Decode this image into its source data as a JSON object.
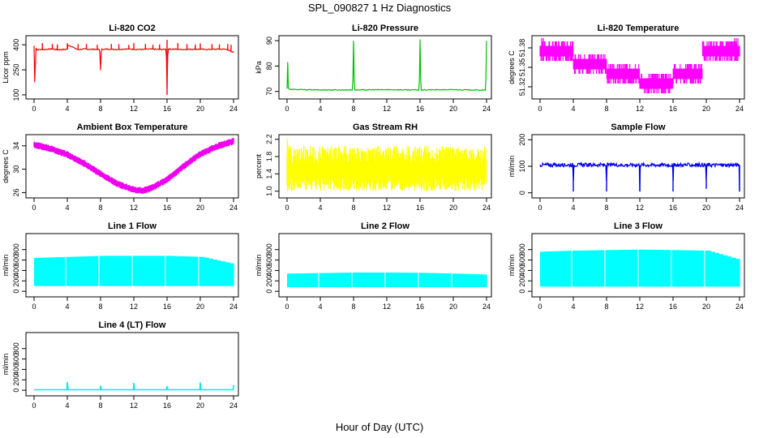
{
  "figure": {
    "title": "SPL_090827  1 Hz Diagnostics",
    "xlabel": "Hour of Day (UTC)"
  },
  "chart_data": [
    {
      "type": "line",
      "title": "Li-820 CO2",
      "ylabel": "Licor ppm",
      "color": "#ff0000",
      "xlim": [
        0,
        24
      ],
      "ylim": [
        90,
        440
      ],
      "xticks": [
        0,
        4,
        8,
        12,
        16,
        20,
        24
      ],
      "yticks": [
        100,
        250,
        400
      ],
      "xticklabels": [
        "0",
        "4",
        "8",
        "12",
        "16",
        "20",
        "24"
      ],
      "yticklabels": [
        "100",
        "250",
        "400"
      ],
      "series": [
        {
          "x": [
            0,
            0.1,
            0.2,
            0.3,
            1.1,
            2.2,
            2.8,
            4,
            4.1,
            5.2,
            6.1,
            7.9,
            8,
            8.1,
            9.2,
            10.1,
            11,
            12,
            13.2,
            14,
            15.1,
            15.9,
            16,
            16.1,
            17.2,
            18,
            19.1,
            20.1,
            21.2,
            22,
            23.2,
            23.8,
            24
          ],
          "y": [
            395,
            120,
            390,
            370,
            372,
            375,
            370,
            373,
            400,
            372,
            374,
            372,
            250,
            373,
            374,
            372,
            375,
            373,
            372,
            374,
            372,
            373,
            140,
            375,
            373,
            372,
            374,
            373,
            372,
            374,
            373,
            355,
            360
          ]
        }
      ],
      "spikes": [
        {
          "x": 0.1,
          "y": 120
        },
        {
          "x": 1.0,
          "y": 410
        },
        {
          "x": 2.2,
          "y": 405
        },
        {
          "x": 2.8,
          "y": 402
        },
        {
          "x": 4.0,
          "y": 410
        },
        {
          "x": 5.3,
          "y": 404
        },
        {
          "x": 6.3,
          "y": 405
        },
        {
          "x": 7.6,
          "y": 400
        },
        {
          "x": 8.0,
          "y": 250
        },
        {
          "x": 9.3,
          "y": 405
        },
        {
          "x": 10.2,
          "y": 404
        },
        {
          "x": 11.4,
          "y": 400
        },
        {
          "x": 12.0,
          "y": 410
        },
        {
          "x": 13.4,
          "y": 405
        },
        {
          "x": 14.3,
          "y": 400
        },
        {
          "x": 15.1,
          "y": 402
        },
        {
          "x": 16.0,
          "y": 430
        },
        {
          "x": 16.0,
          "y": 100
        },
        {
          "x": 17.3,
          "y": 410
        },
        {
          "x": 18.4,
          "y": 404
        },
        {
          "x": 19.4,
          "y": 402
        },
        {
          "x": 20.0,
          "y": 408
        },
        {
          "x": 21.4,
          "y": 404
        },
        {
          "x": 22.3,
          "y": 402
        },
        {
          "x": 23.3,
          "y": 405
        },
        {
          "x": 23.7,
          "y": 400
        }
      ]
    },
    {
      "type": "line",
      "title": "Li-820 Pressure",
      "ylabel": "kPa",
      "color": "#00c000",
      "xlim": [
        0,
        24
      ],
      "ylim": [
        68,
        91
      ],
      "xticks": [
        0,
        4,
        8,
        12,
        16,
        20,
        24
      ],
      "yticks": [
        70,
        80,
        90
      ],
      "xticklabels": [
        "0",
        "4",
        "8",
        "12",
        "16",
        "20",
        "24"
      ],
      "yticklabels": [
        "70",
        "80",
        "90"
      ],
      "series": [
        {
          "x": [
            0,
            0.05,
            0.15,
            0.3,
            4,
            7.9,
            8,
            8.1,
            12,
            15.9,
            16,
            16.1,
            20,
            23.9,
            24
          ],
          "y": [
            71,
            86,
            71.5,
            70.8,
            70.6,
            70.6,
            90,
            70.6,
            70.7,
            70.6,
            90.5,
            70.6,
            70.7,
            70.5,
            90
          ]
        }
      ],
      "spikes": [
        {
          "x": 0.05,
          "y": 86
        },
        {
          "x": 8.0,
          "y": 90
        },
        {
          "x": 16.0,
          "y": 90.5
        },
        {
          "x": 24.0,
          "y": 90
        }
      ]
    },
    {
      "type": "line",
      "title": "Li-820 Temperature",
      "ylabel": "degrees C",
      "color": "#ff00ff",
      "xlim": [
        0,
        24
      ],
      "ylim": [
        51.305,
        51.395
      ],
      "xticks": [
        0,
        4,
        8,
        12,
        16,
        20,
        24
      ],
      "yticks": [
        51.32,
        51.35,
        51.38
      ],
      "xticklabels": [
        "0",
        "4",
        "8",
        "12",
        "16",
        "20",
        "24"
      ],
      "yticklabels": [
        "51.32",
        "51.35",
        "51.38"
      ],
      "series": [
        {
          "x": [
            0,
            4,
            4,
            8,
            8,
            12,
            12,
            16,
            16,
            19.5,
            19.5,
            24
          ],
          "y": [
            51.375,
            51.375,
            51.355,
            51.355,
            51.34,
            51.34,
            51.325,
            51.325,
            51.34,
            51.34,
            51.375,
            51.375
          ]
        }
      ]
    },
    {
      "type": "line",
      "title": "Ambient Box Temperature",
      "ylabel": "degrees C",
      "color": "#ee00ee",
      "xlim": [
        0,
        24
      ],
      "ylim": [
        25.5,
        35.5
      ],
      "xticks": [
        0,
        4,
        8,
        12,
        16,
        20,
        24
      ],
      "yticks": [
        26,
        30,
        34
      ],
      "xticklabels": [
        "0",
        "4",
        "8",
        "12",
        "16",
        "20",
        "24"
      ],
      "yticklabels": [
        "26",
        "30",
        "34"
      ],
      "series": [
        {
          "x": [
            0,
            2,
            4,
            6,
            8,
            10,
            12,
            13,
            14,
            16,
            18,
            20,
            22,
            24
          ],
          "y": [
            34.2,
            33.5,
            32.5,
            31,
            29.2,
            27.5,
            26.5,
            26.3,
            26.7,
            28.2,
            30.5,
            32.6,
            33.9,
            34.8
          ]
        }
      ]
    },
    {
      "type": "line",
      "title": "Gas Stream RH",
      "ylabel": "percent",
      "color": "#ffff00",
      "xlim": [
        0,
        24
      ],
      "ylim": [
        0.9,
        2.25
      ],
      "xticks": [
        0,
        4,
        8,
        12,
        16,
        20,
        24
      ],
      "yticks": [
        1.0,
        1.4,
        1.8,
        2.2
      ],
      "xticklabels": [
        "0",
        "4",
        "8",
        "12",
        "16",
        "20",
        "24"
      ],
      "yticklabels": [
        "1.0",
        "1.4",
        "1.8",
        "2.2"
      ],
      "series": [
        {
          "x": [
            0,
            24
          ],
          "y": [
            1.0,
            2.0
          ]
        }
      ]
    },
    {
      "type": "line",
      "title": "Sample Flow",
      "ylabel": "ml/min",
      "color": "#0000ee",
      "xlim": [
        0,
        24
      ],
      "ylim": [
        -10,
        210
      ],
      "xticks": [
        0,
        4,
        8,
        12,
        16,
        20,
        24
      ],
      "yticks": [
        0,
        100,
        200
      ],
      "xticklabels": [
        "0",
        "4",
        "8",
        "12",
        "16",
        "20",
        "24"
      ],
      "yticklabels": [
        "0",
        "100",
        "200"
      ],
      "series": [
        {
          "x": [
            0,
            3.95,
            4,
            4.05,
            7.95,
            8,
            8.05,
            11.95,
            12,
            12.05,
            15.95,
            16,
            16.05,
            19.95,
            20,
            20.05,
            23.95,
            24
          ],
          "y": [
            105,
            105,
            5,
            105,
            105,
            5,
            105,
            105,
            5,
            105,
            105,
            5,
            105,
            105,
            15,
            105,
            105,
            5
          ]
        }
      ]
    },
    {
      "type": "line",
      "title": "Line 1 Flow",
      "ylabel": "ml/min",
      "color": "#00ffff",
      "xlim": [
        0,
        24
      ],
      "ylim": [
        -60,
        1060
      ],
      "xticks": [
        0,
        4,
        8,
        12,
        16,
        20,
        24
      ],
      "yticks": [
        0,
        200,
        400,
        600,
        800
      ],
      "xticklabels": [
        "0",
        "4",
        "8",
        "12",
        "16",
        "20",
        "24"
      ],
      "yticklabels": [
        "0",
        "200",
        "400",
        "600",
        "800"
      ],
      "series": [
        {
          "x": [
            0,
            4,
            8,
            12,
            16,
            20,
            24
          ],
          "y": [
            640,
            660,
            680,
            680,
            680,
            660,
            520
          ]
        }
      ],
      "band_low": 100
    },
    {
      "type": "line",
      "title": "Line 2 Flow",
      "ylabel": "ml/min",
      "color": "#00ffff",
      "xlim": [
        0,
        24
      ],
      "ylim": [
        -60,
        1060
      ],
      "xticks": [
        0,
        4,
        8,
        12,
        16,
        20,
        24
      ],
      "yticks": [
        0,
        200,
        400,
        600,
        800
      ],
      "xticklabels": [
        "0",
        "4",
        "8",
        "12",
        "16",
        "20",
        "24"
      ],
      "yticklabels": [
        "0",
        "200",
        "400",
        "600",
        "800"
      ],
      "series": [
        {
          "x": [
            0,
            4,
            8,
            12,
            16,
            20,
            24
          ],
          "y": [
            340,
            350,
            360,
            360,
            355,
            340,
            320
          ]
        }
      ],
      "band_low": 80
    },
    {
      "type": "line",
      "title": "Line 3 Flow",
      "ylabel": "ml/min",
      "color": "#00ffff",
      "xlim": [
        0,
        24
      ],
      "ylim": [
        -60,
        1060
      ],
      "xticks": [
        0,
        4,
        8,
        12,
        16,
        20,
        24
      ],
      "yticks": [
        0,
        200,
        400,
        600,
        800
      ],
      "xticklabels": [
        "0",
        "4",
        "8",
        "12",
        "16",
        "20",
        "24"
      ],
      "yticklabels": [
        "0",
        "200",
        "400",
        "600",
        "800"
      ],
      "series": [
        {
          "x": [
            0,
            4,
            8,
            12,
            16,
            20,
            24
          ],
          "y": [
            760,
            780,
            790,
            800,
            790,
            780,
            600
          ]
        }
      ],
      "band_low": 90
    },
    {
      "type": "line",
      "title": "Line 4 (LT) Flow",
      "ylabel": "ml/min",
      "color": "#00eeee",
      "xlim": [
        0,
        24
      ],
      "ylim": [
        -60,
        1060
      ],
      "xticks": [
        0,
        4,
        8,
        12,
        16,
        20,
        24
      ],
      "yticks": [
        0,
        200,
        400,
        600,
        800
      ],
      "xticklabels": [
        "0",
        "4",
        "8",
        "12",
        "16",
        "20",
        "24"
      ],
      "yticklabels": [
        "0",
        "200",
        "400",
        "600",
        "800"
      ],
      "series": [
        {
          "x": [
            0,
            3.95,
            4,
            4.1,
            7.95,
            8,
            8.1,
            11.95,
            12,
            12.1,
            15.95,
            16,
            16.1,
            19.95,
            20,
            20.1,
            23.95,
            24
          ],
          "y": [
            10,
            10,
            160,
            10,
            10,
            90,
            10,
            10,
            140,
            10,
            10,
            80,
            10,
            10,
            150,
            10,
            10,
            100
          ]
        }
      ]
    }
  ]
}
